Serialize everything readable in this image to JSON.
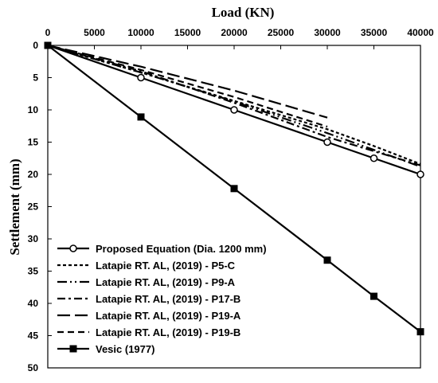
{
  "chart_data": {
    "type": "line",
    "xlabel": "Load (KN)",
    "ylabel": "Settlement (mm)",
    "xlim": [
      0,
      40000
    ],
    "ylim": [
      0,
      50
    ],
    "y_inverted": true,
    "x_axis_position": "top",
    "grid": false,
    "legend_position": "bottom-left",
    "x_ticks": [
      0,
      5000,
      10000,
      15000,
      20000,
      25000,
      30000,
      35000,
      40000
    ],
    "y_ticks": [
      0,
      5,
      10,
      15,
      20,
      25,
      30,
      35,
      40,
      45,
      50
    ],
    "series": [
      {
        "name": "Proposed Equation (Dia. 1200 mm)",
        "line_style": "solid",
        "marker": "open-circle",
        "x": [
          0,
          10000,
          20000,
          30000,
          35000,
          40000
        ],
        "y": [
          0,
          5.0,
          10.0,
          15.0,
          17.5,
          20.0
        ]
      },
      {
        "name": "Latapie RT. AL, (2019) - P5-C",
        "line_style": "short-dash",
        "marker": "none",
        "x": [
          0,
          10000,
          20000,
          30000,
          35000,
          40000
        ],
        "y": [
          0,
          4.2,
          8.6,
          13.0,
          15.6,
          18.4
        ]
      },
      {
        "name": "Latapie RT. AL, (2019) - P9-A",
        "line_style": "dash-dot-dot",
        "marker": "none",
        "x": [
          0,
          10000,
          20000,
          30000,
          35000,
          40000
        ],
        "y": [
          0,
          4.2,
          8.7,
          13.6,
          16.2,
          18.8
        ]
      },
      {
        "name": "Latapie RT. AL, (2019) - P17-B",
        "line_style": "dash-dot",
        "marker": "none",
        "x": [
          0,
          10000,
          20000,
          30000,
          35000,
          40000
        ],
        "y": [
          0,
          4.0,
          8.9,
          14.2,
          16.4,
          18.6
        ]
      },
      {
        "name": "Latapie RT. AL, (2019) - P19-A",
        "line_style": "long-dash",
        "marker": "none",
        "x": [
          0,
          10000,
          20000,
          30000
        ],
        "y": [
          0,
          3.3,
          7.0,
          11.2
        ]
      },
      {
        "name": "Latapie RT. AL, (2019) - P19-B",
        "line_style": "medium-dash",
        "marker": "none",
        "x": [
          0,
          10000,
          20000,
          30000
        ],
        "y": [
          0,
          3.8,
          8.0,
          12.6
        ]
      },
      {
        "name": "Vesic (1977)",
        "line_style": "solid",
        "marker": "filled-square",
        "x": [
          0,
          10000,
          20000,
          30000,
          35000,
          40000
        ],
        "y": [
          0,
          11.1,
          22.2,
          33.3,
          38.9,
          44.4
        ]
      }
    ]
  }
}
